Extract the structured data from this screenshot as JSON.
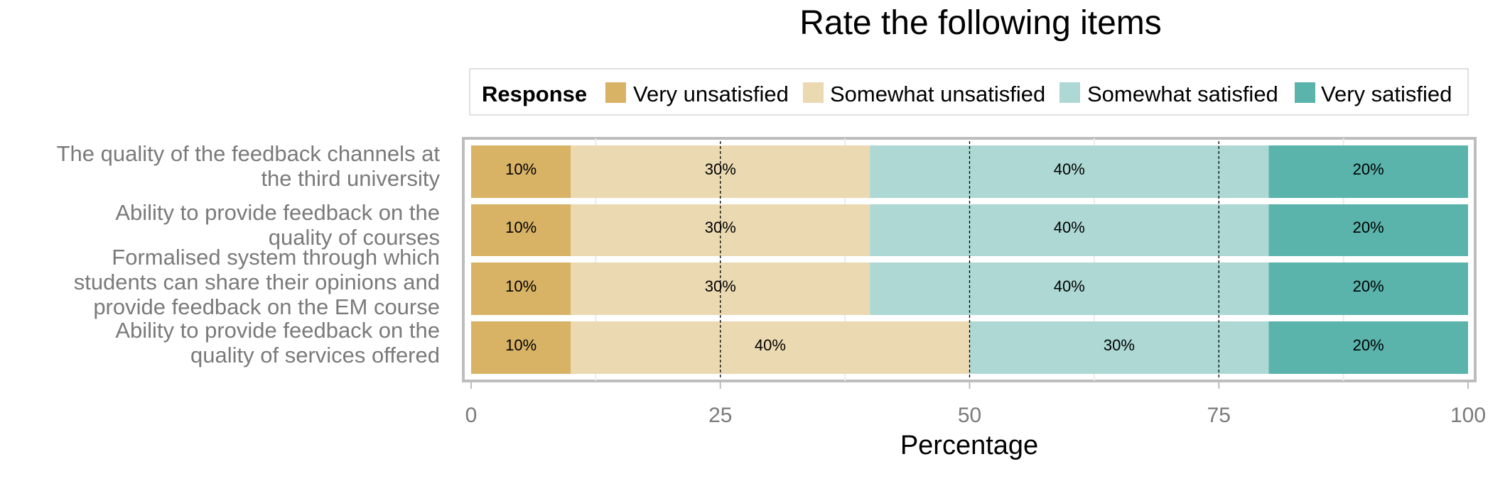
{
  "chart_data": {
    "type": "bar",
    "orientation": "horizontal",
    "stacked": true,
    "title": "Rate the following items",
    "xlabel": "Percentage",
    "ylabel": "",
    "xlim": [
      0,
      100
    ],
    "x_ticks": [
      "0",
      "25",
      "50",
      "75",
      "100"
    ],
    "grid": true,
    "legend": {
      "title": "Response",
      "placement": "top"
    },
    "categories": [
      [
        "The quality of the feedback channels at",
        "the third university"
      ],
      [
        "Ability to provide feedback on the",
        "quality of courses"
      ],
      [
        "Formalised system through which",
        "students can share their opinions and",
        "provide feedback on the EM course"
      ],
      [
        "Ability to provide feedback on the",
        "quality of services offered"
      ]
    ],
    "series": [
      {
        "name": "Very unsatisfied",
        "color": "#D8B365",
        "values": [
          10,
          10,
          10,
          10
        ]
      },
      {
        "name": "Somewhat unsatisfied",
        "color": "#EBD9B2",
        "values": [
          30,
          30,
          30,
          40
        ]
      },
      {
        "name": "Somewhat satisfied",
        "color": "#ADD8D4",
        "values": [
          40,
          40,
          40,
          30
        ]
      },
      {
        "name": "Very satisfied",
        "color": "#5AB4AC",
        "values": [
          20,
          20,
          20,
          20
        ]
      }
    ],
    "data_labels": [
      [
        "10%",
        "30%",
        "40%",
        "20%"
      ],
      [
        "10%",
        "30%",
        "40%",
        "20%"
      ],
      [
        "10%",
        "30%",
        "40%",
        "20%"
      ],
      [
        "10%",
        "40%",
        "30%",
        "20%"
      ]
    ],
    "reference_lines": [
      25,
      50,
      75
    ]
  }
}
